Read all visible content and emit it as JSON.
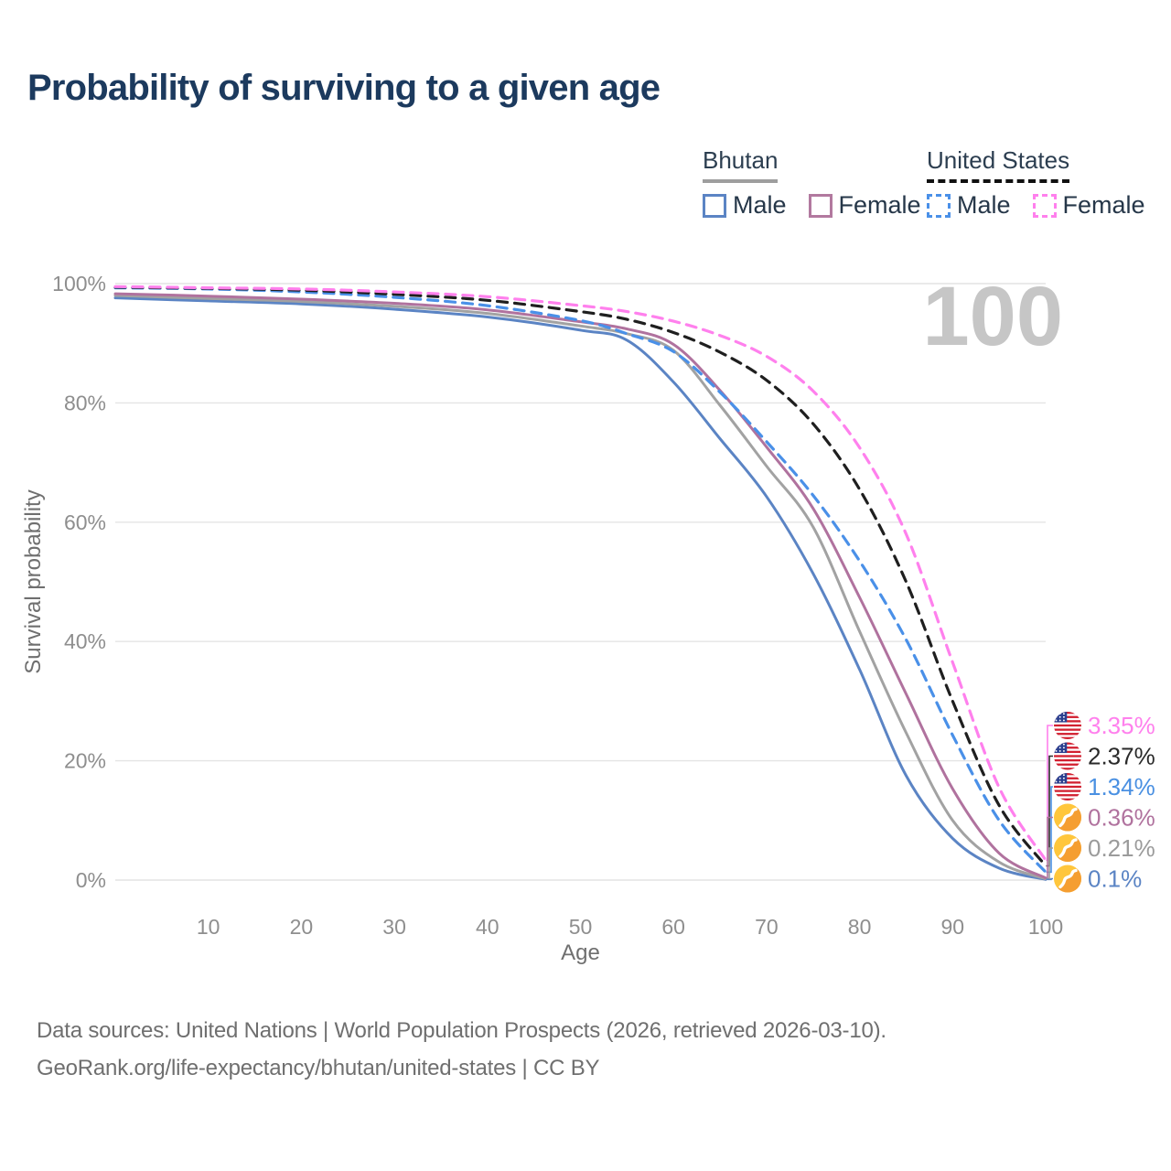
{
  "header": {
    "title": "Probability of surviving to a given age"
  },
  "legend": {
    "groups": [
      {
        "name": "Bhutan",
        "underline_style": "solid",
        "underline_color": "#9e9e9e",
        "items": [
          {
            "label": "Male",
            "color": "#5b84c4",
            "dash": "solid"
          },
          {
            "label": "Female",
            "color": "#b2799f",
            "dash": "solid"
          }
        ]
      },
      {
        "name": "United States",
        "underline_style": "dashed",
        "underline_color": "#111111",
        "items": [
          {
            "label": "Male",
            "color": "#4a90e8",
            "dash": "dashed"
          },
          {
            "label": "Female",
            "color": "#ff80ed",
            "dash": "dashed"
          }
        ]
      }
    ]
  },
  "watermark": "100",
  "chart_data": {
    "type": "line",
    "title": "Probability of surviving to a given age",
    "xlabel": "Age",
    "ylabel": "Survival probability",
    "xlim": [
      0,
      100
    ],
    "ylim": [
      0,
      100
    ],
    "grid": "horizontal",
    "legend_position": "top-right",
    "x": [
      0,
      10,
      20,
      30,
      40,
      50,
      55,
      60,
      65,
      70,
      75,
      80,
      85,
      90,
      95,
      100
    ],
    "xticks": [
      10,
      20,
      30,
      40,
      50,
      60,
      70,
      80,
      90,
      100
    ],
    "yticks": [
      {
        "label": "0%",
        "value": 0
      },
      {
        "label": "20%",
        "value": 20
      },
      {
        "label": "40%",
        "value": 40
      },
      {
        "label": "60%",
        "value": 60
      },
      {
        "label": "80%",
        "value": 80
      },
      {
        "label": "100%",
        "value": 100
      }
    ],
    "series": [
      {
        "key": "bhutan_male",
        "name": "Bhutan Male",
        "country": "Bhutan",
        "sex": "Male",
        "color": "#5b84c4",
        "dash": "solid",
        "values": [
          97.6,
          97.1,
          96.6,
          95.7,
          94.4,
          92.2,
          90.5,
          83.5,
          74.0,
          64.3,
          51.4,
          35.3,
          17.5,
          7.0,
          2.0,
          0.1
        ]
      },
      {
        "key": "bhutan_both",
        "name": "Bhutan",
        "country": "Bhutan",
        "sex": "Both",
        "color": "#a2a2a2",
        "dash": "solid",
        "values": [
          98.0,
          97.5,
          97.0,
          96.2,
          95.0,
          92.9,
          91.6,
          88.8,
          79.6,
          69.4,
          59.2,
          41.7,
          24.7,
          10.0,
          3.0,
          0.21
        ]
      },
      {
        "key": "bhutan_female",
        "name": "Bhutan Female",
        "country": "Bhutan",
        "sex": "Female",
        "color": "#b0729e",
        "dash": "solid",
        "values": [
          98.3,
          97.9,
          97.4,
          96.7,
          95.6,
          93.6,
          92.4,
          89.8,
          82.1,
          72.6,
          62.3,
          47.4,
          31.2,
          15.3,
          4.5,
          0.36
        ]
      },
      {
        "key": "us_male",
        "name": "United States Male",
        "country": "United States",
        "sex": "Male",
        "color": "#4a90e8",
        "dash": "dashed",
        "values": [
          99.3,
          99.1,
          98.6,
          97.7,
          96.3,
          93.8,
          91.6,
          88.6,
          81.8,
          73.5,
          64.5,
          53.5,
          40.3,
          24.3,
          10.0,
          1.34
        ]
      },
      {
        "key": "us_both",
        "name": "United States",
        "country": "United States",
        "sex": "Both",
        "color": "#1f1f1f",
        "dash": "dashed",
        "values": [
          99.4,
          99.2,
          98.9,
          98.2,
          97.2,
          95.3,
          94.0,
          91.8,
          88.5,
          83.8,
          76.5,
          65.5,
          50.0,
          30.0,
          12.5,
          2.37
        ]
      },
      {
        "key": "us_female",
        "name": "United States Female",
        "country": "United States",
        "sex": "Female",
        "color": "#ff80ed",
        "dash": "dashed",
        "values": [
          99.5,
          99.3,
          99.1,
          98.6,
          97.8,
          96.3,
          95.3,
          93.7,
          91.3,
          87.8,
          82.0,
          72.5,
          58.0,
          36.5,
          15.5,
          3.35
        ]
      }
    ]
  },
  "end_labels": [
    {
      "series": "us_female",
      "flag": "us",
      "value": "3.35%",
      "color": "#ff80ed"
    },
    {
      "series": "us_both",
      "flag": "us",
      "value": "2.37%",
      "color": "#2a2a2a"
    },
    {
      "series": "us_male",
      "flag": "us",
      "value": "1.34%",
      "color": "#4a90e2"
    },
    {
      "series": "bhutan_female",
      "flag": "bt",
      "value": "0.36%",
      "color": "#b0729e"
    },
    {
      "series": "bhutan_both",
      "flag": "bt",
      "value": "0.21%",
      "color": "#9b9b9b"
    },
    {
      "series": "bhutan_male",
      "flag": "bt",
      "value": "0.1%",
      "color": "#5b84c4"
    }
  ],
  "footer": {
    "line1": "Data sources: United Nations | World Population Prospects (2026, retrieved 2026-03-10).",
    "line2": "GeoRank.org/life-expectancy/bhutan/united-states | CC BY"
  }
}
